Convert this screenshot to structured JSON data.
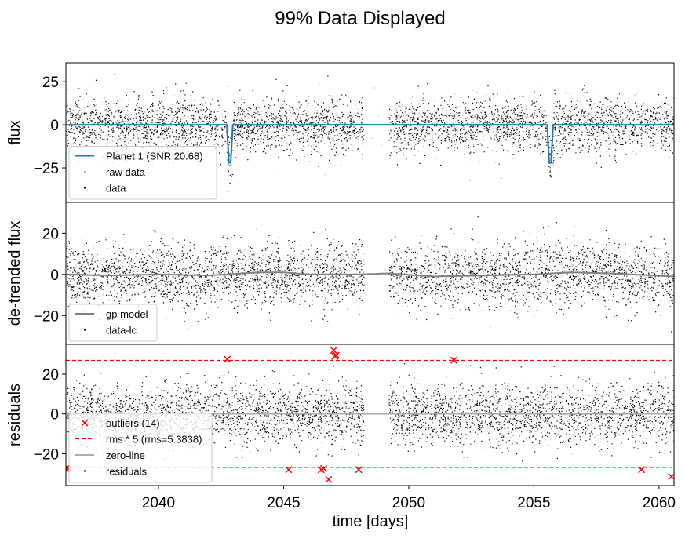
{
  "figure": {
    "title": "99% Data Displayed",
    "xlabel": "time [days]",
    "xlim": [
      2036.3,
      2060.6
    ],
    "xticks": [
      2040,
      2045,
      2050,
      2055,
      2060
    ],
    "xtick_labels": [
      "2040",
      "2045",
      "2050",
      "2055",
      "2060"
    ]
  },
  "chart_data": [
    {
      "type": "scatter",
      "ylabel": "flux",
      "ylim": [
        -45,
        36
      ],
      "yticks": [
        25,
        0,
        -25
      ],
      "ytick_labels": [
        "25",
        "0",
        "−25"
      ],
      "legend_position": "lower-left",
      "data_gap": [
        2048.2,
        2049.2
      ],
      "scatter_sigma": 7.6,
      "series": [
        {
          "name": "Planet 1 (SNR 20.68)",
          "kind": "line",
          "color": "#1f77b4",
          "baseline": 0,
          "transit_centers": [
            2042.85,
            2055.65
          ],
          "transit_depth": -22,
          "transit_half_width": 0.12
        },
        {
          "name": "raw data",
          "kind": "points",
          "color": "#bbbbbb"
        },
        {
          "name": "data",
          "kind": "points",
          "color": "#000000"
        }
      ]
    },
    {
      "type": "scatter",
      "ylabel": "de-trended flux",
      "ylim": [
        -34,
        35
      ],
      "yticks": [
        20,
        0,
        -20
      ],
      "ytick_labels": [
        "20",
        "0",
        "−20"
      ],
      "legend_position": "lower-left",
      "data_gap": [
        2048.2,
        2049.2
      ],
      "scatter_sigma": 7.6,
      "series": [
        {
          "name": "gp model",
          "kind": "line",
          "color": "#808080",
          "x": [
            2036.3,
            2038,
            2040,
            2042,
            2044,
            2045,
            2046,
            2048,
            2049.2,
            2051,
            2053,
            2055,
            2056.5,
            2058,
            2060.6
          ],
          "y": [
            0,
            -0.5,
            0,
            -0.5,
            1,
            1,
            0,
            0,
            0.5,
            -1,
            -0.5,
            0,
            1,
            0.5,
            -1
          ]
        },
        {
          "name": "data-lc",
          "kind": "points",
          "color": "#000000"
        }
      ]
    },
    {
      "type": "scatter",
      "ylabel": "residuals",
      "ylim": [
        -36,
        35
      ],
      "yticks": [
        20,
        0,
        -20
      ],
      "ytick_labels": [
        "20",
        "0",
        "−20"
      ],
      "legend_position": "lower-left",
      "data_gap": [
        2048.2,
        2049.2
      ],
      "scatter_sigma": 7.6,
      "rms_threshold": 26.9,
      "series": [
        {
          "name": "outliers (14)",
          "kind": "markers",
          "color": "#ff0000",
          "x": [
            2036.4,
            2042.75,
            2045.2,
            2046.5,
            2046.8,
            2047.0,
            2047.05,
            2047.1,
            2048.0,
            2051.8,
            2059.3,
            2060.5,
            2046.6,
            2036.3
          ],
          "y": [
            -27.5,
            27.5,
            -28,
            -28,
            -33,
            32,
            29,
            29.5,
            -28,
            27,
            -28,
            -31.5,
            -27.5,
            -27.5
          ]
        },
        {
          "name": "rms * 5 (rms=5.3838)",
          "kind": "dashed",
          "color": "#ff0000",
          "values": [
            26.9,
            -26.9
          ]
        },
        {
          "name": "zero-line",
          "kind": "line",
          "color": "#aaaaaa",
          "values": [
            0
          ]
        },
        {
          "name": "residuals",
          "kind": "points",
          "color": "#000000"
        }
      ]
    }
  ]
}
